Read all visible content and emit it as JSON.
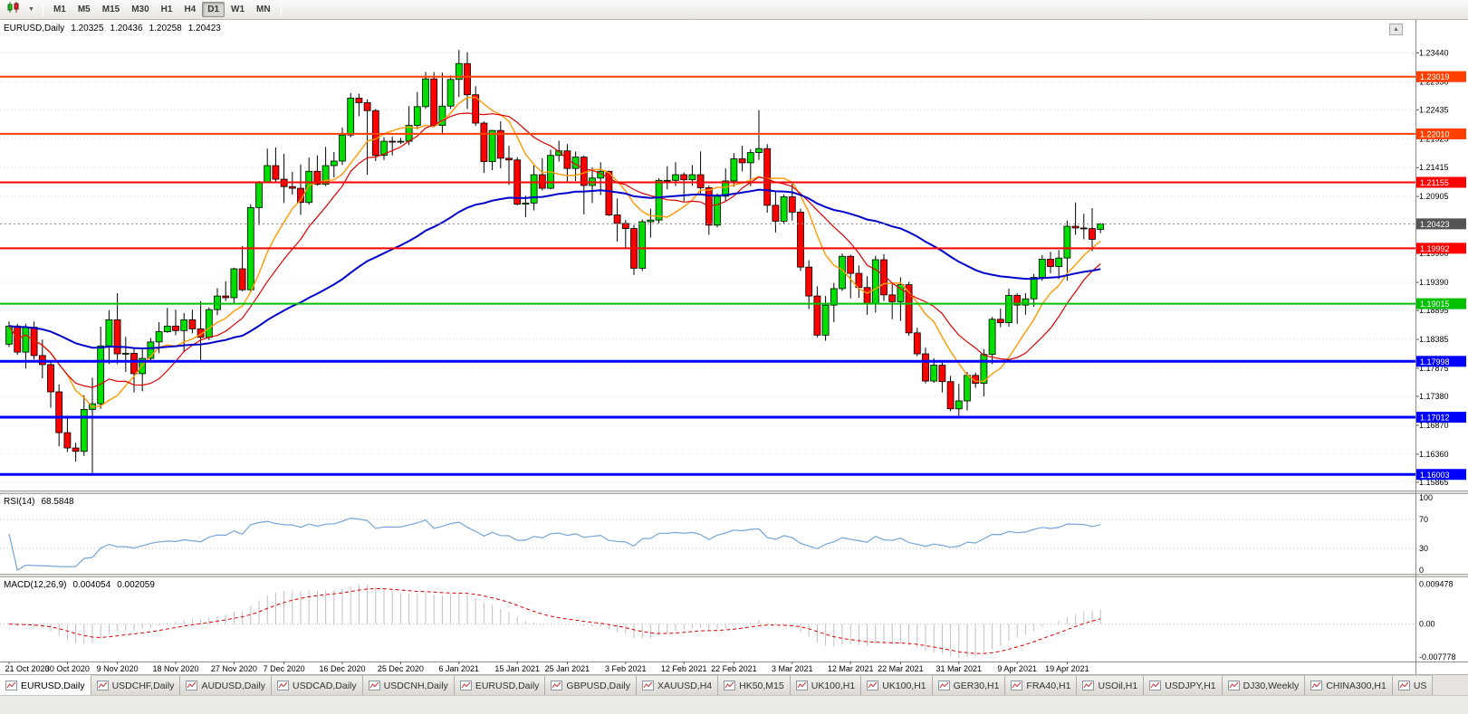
{
  "icons": {
    "dropdown_caret": "▼",
    "chart_shift": "▲"
  },
  "toolbar": {
    "timeframes": [
      {
        "label": "M1",
        "active": false
      },
      {
        "label": "M5",
        "active": false
      },
      {
        "label": "M15",
        "active": false
      },
      {
        "label": "M30",
        "active": false
      },
      {
        "label": "H1",
        "active": false
      },
      {
        "label": "H4",
        "active": false
      },
      {
        "label": "D1",
        "active": true
      },
      {
        "label": "W1",
        "active": false
      },
      {
        "label": "MN",
        "active": false
      }
    ]
  },
  "chart": {
    "symbol_title": "EURUSD,Daily",
    "ohlc": {
      "open": "1.20325",
      "high": "1.20436",
      "low": "1.20258",
      "close": "1.20423"
    }
  },
  "rsi_panel": {
    "title": "RSI(14)",
    "value": "68.5848"
  },
  "macd_panel": {
    "title": "MACD(12,26,9)",
    "macd_value": "0.004054",
    "signal_value": "0.002059"
  },
  "tabs": [
    {
      "label": "EURUSD,Daily",
      "active": true
    },
    {
      "label": "USDCHF,Daily",
      "active": false
    },
    {
      "label": "AUDUSD,Daily",
      "active": false
    },
    {
      "label": "USDCAD,Daily",
      "active": false
    },
    {
      "label": "USDCNH,Daily",
      "active": false
    },
    {
      "label": "EURUSD,Daily",
      "active": false
    },
    {
      "label": "GBPUSD,Daily",
      "active": false
    },
    {
      "label": "XAUUSD,H4",
      "active": false
    },
    {
      "label": "HK50,M15",
      "active": false
    },
    {
      "label": "UK100,H1",
      "active": false
    },
    {
      "label": "UK100,H1",
      "active": false
    },
    {
      "label": "GER30,H1",
      "active": false
    },
    {
      "label": "FRA40,H1",
      "active": false
    },
    {
      "label": "USOil,H1",
      "active": false
    },
    {
      "label": "USDJPY,H1",
      "active": false
    },
    {
      "label": "DJ30,Weekly",
      "active": false
    },
    {
      "label": "CHINA300,H1",
      "active": false
    },
    {
      "label": "US",
      "active": false
    }
  ],
  "chart_data": {
    "type": "candlestick",
    "symbol": "EURUSD",
    "timeframe": "Daily",
    "last_ohlc": {
      "open": 1.20325,
      "high": 1.20436,
      "low": 1.20258,
      "close": 1.20423
    },
    "price_axis_ticks": [
      "1.23440",
      "1.22930",
      "1.22435",
      "1.21925",
      "1.21415",
      "1.20905",
      "1.19900",
      "1.19390",
      "1.18895",
      "1.18385",
      "1.17875",
      "1.17380",
      "1.16870",
      "1.16360",
      "1.15865"
    ],
    "current_price": {
      "value": "1.20423",
      "price": 1.20423
    },
    "horizontal_levels": [
      {
        "value": "1.23019",
        "price": 1.23019,
        "color": "#FF4000",
        "width": 2
      },
      {
        "value": "1.22010",
        "price": 1.2201,
        "color": "#FF4000",
        "width": 2
      },
      {
        "value": "1.21155",
        "price": 1.21155,
        "color": "#FF0000",
        "width": 2
      },
      {
        "value": "1.19992",
        "price": 1.19992,
        "color": "#FF0000",
        "width": 2
      },
      {
        "value": "1.19015",
        "price": 1.19015,
        "color": "#00C000",
        "width": 2
      },
      {
        "value": "1.17998",
        "price": 1.17998,
        "color": "#0000FF",
        "width": 3
      },
      {
        "value": "1.17012",
        "price": 1.17012,
        "color": "#0000FF",
        "width": 3
      },
      {
        "value": "1.16003",
        "price": 1.16003,
        "color": "#0000FF",
        "width": 3
      }
    ],
    "date_labels": [
      {
        "label": "21 Oct 2020",
        "index": 0
      },
      {
        "label": "30 Oct 2020",
        "index": 7
      },
      {
        "label": "9 Nov 2020",
        "index": 13
      },
      {
        "label": "18 Nov 2020",
        "index": 20
      },
      {
        "label": "27 Nov 2020",
        "index": 27
      },
      {
        "label": "7 Dec 2020",
        "index": 33
      },
      {
        "label": "16 Dec 2020",
        "index": 40
      },
      {
        "label": "25 Dec 2020",
        "index": 47
      },
      {
        "label": "6 Jan 2021",
        "index": 54
      },
      {
        "label": "15 Jan 2021",
        "index": 61
      },
      {
        "label": "25 Jan 2021",
        "index": 67
      },
      {
        "label": "3 Feb 2021",
        "index": 74
      },
      {
        "label": "12 Feb 2021",
        "index": 81
      },
      {
        "label": "22 Feb 2021",
        "index": 87
      },
      {
        "label": "3 Mar 2021",
        "index": 94
      },
      {
        "label": "12 Mar 2021",
        "index": 101
      },
      {
        "label": "22 Mar 2021",
        "index": 107
      },
      {
        "label": "31 Mar 2021",
        "index": 114
      },
      {
        "label": "9 Apr 2021",
        "index": 121
      },
      {
        "label": "19 Apr 2021",
        "index": 127
      }
    ],
    "candles_ohlc": [
      [
        1.183,
        1.187,
        1.1825,
        1.1862
      ],
      [
        1.1862,
        1.1866,
        1.1811,
        1.1816
      ],
      [
        1.1816,
        1.1866,
        1.1787,
        1.186
      ],
      [
        1.186,
        1.187,
        1.1803,
        1.181
      ],
      [
        1.181,
        1.1838,
        1.177,
        1.1794
      ],
      [
        1.1794,
        1.18,
        1.1718,
        1.1746
      ],
      [
        1.1746,
        1.1759,
        1.165,
        1.1674
      ],
      [
        1.1674,
        1.1704,
        1.164,
        1.1647
      ],
      [
        1.1647,
        1.1656,
        1.1623,
        1.1641
      ],
      [
        1.1641,
        1.174,
        1.1633,
        1.1715
      ],
      [
        1.1715,
        1.1771,
        1.1603,
        1.1725
      ],
      [
        1.1725,
        1.1861,
        1.1716,
        1.1827
      ],
      [
        1.1827,
        1.189,
        1.1795,
        1.1873
      ],
      [
        1.1873,
        1.192,
        1.1795,
        1.1813
      ],
      [
        1.1813,
        1.1843,
        1.1781,
        1.1814
      ],
      [
        1.1814,
        1.1824,
        1.1745,
        1.1778
      ],
      [
        1.1778,
        1.1823,
        1.1747,
        1.1805
      ],
      [
        1.1805,
        1.1841,
        1.1799,
        1.1834
      ],
      [
        1.1834,
        1.1869,
        1.1814,
        1.1852
      ],
      [
        1.1852,
        1.1894,
        1.185,
        1.1862
      ],
      [
        1.1862,
        1.1891,
        1.1846,
        1.1854
      ],
      [
        1.1854,
        1.1885,
        1.1816,
        1.1873
      ],
      [
        1.1873,
        1.1891,
        1.1849,
        1.1857
      ],
      [
        1.1857,
        1.1906,
        1.18,
        1.1842
      ],
      [
        1.1842,
        1.1895,
        1.1837,
        1.1891
      ],
      [
        1.1891,
        1.1929,
        1.1881,
        1.1915
      ],
      [
        1.1915,
        1.1941,
        1.1906,
        1.1912
      ],
      [
        1.1912,
        1.1965,
        1.1901,
        1.1963
      ],
      [
        1.1963,
        1.2003,
        1.1923,
        1.1926
      ],
      [
        1.1926,
        1.2077,
        1.1922,
        1.2071
      ],
      [
        1.2071,
        1.2118,
        1.204,
        1.2115
      ],
      [
        1.2115,
        1.2175,
        1.2114,
        1.2145
      ],
      [
        1.2145,
        1.2177,
        1.2116,
        1.2121
      ],
      [
        1.2121,
        1.2166,
        1.2079,
        1.2108
      ],
      [
        1.2108,
        1.2134,
        1.2094,
        1.2105
      ],
      [
        1.2105,
        1.2147,
        1.2058,
        1.208
      ],
      [
        1.208,
        1.2159,
        1.2076,
        1.2135
      ],
      [
        1.2135,
        1.2163,
        1.211,
        1.2112
      ],
      [
        1.2112,
        1.2178,
        1.2109,
        1.2145
      ],
      [
        1.2145,
        1.2169,
        1.2124,
        1.2153
      ],
      [
        1.2153,
        1.2212,
        1.2146,
        1.2199
      ],
      [
        1.2199,
        1.2273,
        1.2195,
        1.2264
      ],
      [
        1.2264,
        1.2272,
        1.2232,
        1.2256
      ],
      [
        1.2256,
        1.2262,
        1.2129,
        1.2242
      ],
      [
        1.2242,
        1.2245,
        1.2153,
        1.2163
      ],
      [
        1.2163,
        1.2195,
        1.2155,
        1.2188
      ],
      [
        1.2188,
        1.2196,
        1.2163,
        1.2187
      ],
      [
        1.2187,
        1.2194,
        1.2183,
        1.2188
      ],
      [
        1.2188,
        1.225,
        1.2181,
        1.2216
      ],
      [
        1.2216,
        1.2275,
        1.2209,
        1.2249
      ],
      [
        1.2249,
        1.231,
        1.2245,
        1.2298
      ],
      [
        1.2298,
        1.231,
        1.2214,
        1.2216
      ],
      [
        1.2216,
        1.2309,
        1.2199,
        1.225
      ],
      [
        1.225,
        1.2304,
        1.2245,
        1.2297
      ],
      [
        1.2297,
        1.2349,
        1.2266,
        1.2325
      ],
      [
        1.2325,
        1.2345,
        1.2245,
        1.227
      ],
      [
        1.227,
        1.2285,
        1.2215,
        1.222
      ],
      [
        1.222,
        1.2223,
        1.2132,
        1.2152
      ],
      [
        1.2152,
        1.2208,
        1.2137,
        1.2207
      ],
      [
        1.2207,
        1.2223,
        1.214,
        1.2158
      ],
      [
        1.2158,
        1.218,
        1.2111,
        1.2155
      ],
      [
        1.2155,
        1.216,
        1.2075,
        1.2077
      ],
      [
        1.2077,
        1.2092,
        1.2054,
        1.2079
      ],
      [
        1.2079,
        1.2145,
        1.2066,
        1.2129
      ],
      [
        1.2129,
        1.2158,
        1.2101,
        1.2105
      ],
      [
        1.2105,
        1.2173,
        1.2103,
        1.2163
      ],
      [
        1.2163,
        1.2189,
        1.2152,
        1.2171
      ],
      [
        1.2171,
        1.2183,
        1.2116,
        1.214
      ],
      [
        1.214,
        1.217,
        1.2118,
        1.216
      ],
      [
        1.216,
        1.2163,
        1.2059,
        1.211
      ],
      [
        1.211,
        1.2142,
        1.2079,
        1.2123
      ],
      [
        1.2123,
        1.2151,
        1.2093,
        1.2135
      ],
      [
        1.2135,
        1.2136,
        1.2056,
        1.2058
      ],
      [
        1.2058,
        1.2087,
        1.2011,
        1.2043
      ],
      [
        1.2043,
        1.2049,
        1.1999,
        1.2034
      ],
      [
        1.2034,
        1.204,
        1.1952,
        1.1964
      ],
      [
        1.1964,
        1.205,
        1.1959,
        1.2046
      ],
      [
        1.2046,
        1.2069,
        1.2018,
        1.2049
      ],
      [
        1.2049,
        1.2123,
        1.2043,
        1.2119
      ],
      [
        1.2119,
        1.2144,
        1.2103,
        1.2119
      ],
      [
        1.2119,
        1.2151,
        1.2109,
        1.2129
      ],
      [
        1.2129,
        1.2133,
        1.2082,
        1.212
      ],
      [
        1.212,
        1.2146,
        1.211,
        1.2129
      ],
      [
        1.2129,
        1.217,
        1.2096,
        1.2106
      ],
      [
        1.2106,
        1.211,
        1.2023,
        1.204
      ],
      [
        1.204,
        1.2096,
        1.2036,
        1.2091
      ],
      [
        1.2091,
        1.214,
        1.2082,
        1.2118
      ],
      [
        1.2118,
        1.2167,
        1.2108,
        1.2157
      ],
      [
        1.2157,
        1.218,
        1.2135,
        1.215
      ],
      [
        1.215,
        1.2174,
        1.2109,
        1.2168
      ],
      [
        1.2168,
        1.2243,
        1.2155,
        1.2175
      ],
      [
        1.2175,
        1.2183,
        1.2062,
        1.2075
      ],
      [
        1.2075,
        1.2101,
        1.2027,
        1.2047
      ],
      [
        1.2047,
        1.2094,
        1.2043,
        1.209
      ],
      [
        1.209,
        1.2113,
        1.2048,
        1.2063
      ],
      [
        1.2063,
        1.2069,
        1.1959,
        1.1966
      ],
      [
        1.1966,
        1.1978,
        1.1892,
        1.1915
      ],
      [
        1.1915,
        1.1932,
        1.1842,
        1.1846
      ],
      [
        1.1846,
        1.1915,
        1.1836,
        1.1899
      ],
      [
        1.1899,
        1.1938,
        1.1869,
        1.1928
      ],
      [
        1.1928,
        1.199,
        1.1924,
        1.1985
      ],
      [
        1.1985,
        1.1988,
        1.1911,
        1.1955
      ],
      [
        1.1955,
        1.1969,
        1.1912,
        1.193
      ],
      [
        1.193,
        1.195,
        1.1882,
        1.1901
      ],
      [
        1.1901,
        1.1986,
        1.1886,
        1.1979
      ],
      [
        1.1979,
        1.1989,
        1.1906,
        1.1917
      ],
      [
        1.1917,
        1.1936,
        1.1874,
        1.1905
      ],
      [
        1.1905,
        1.1948,
        1.1871,
        1.1935
      ],
      [
        1.1935,
        1.194,
        1.1845,
        1.185
      ],
      [
        1.185,
        1.1859,
        1.1809,
        1.1813
      ],
      [
        1.1813,
        1.1824,
        1.1761,
        1.1765
      ],
      [
        1.1765,
        1.1805,
        1.1762,
        1.1793
      ],
      [
        1.1793,
        1.1798,
        1.1745,
        1.1764
      ],
      [
        1.1764,
        1.1774,
        1.1712,
        1.1716
      ],
      [
        1.1716,
        1.176,
        1.1704,
        1.173
      ],
      [
        1.173,
        1.1781,
        1.1713,
        1.1775
      ],
      [
        1.1775,
        1.178,
        1.1753,
        1.1761
      ],
      [
        1.1761,
        1.1821,
        1.1738,
        1.1812
      ],
      [
        1.1812,
        1.1878,
        1.1795,
        1.1874
      ],
      [
        1.1874,
        1.1893,
        1.186,
        1.1868
      ],
      [
        1.1868,
        1.1928,
        1.1861,
        1.1916
      ],
      [
        1.1916,
        1.192,
        1.1866,
        1.1899
      ],
      [
        1.1899,
        1.192,
        1.1882,
        1.191
      ],
      [
        1.191,
        1.1954,
        1.1896,
        1.1948
      ],
      [
        1.1948,
        1.1987,
        1.1942,
        1.198
      ],
      [
        1.198,
        1.1993,
        1.1955,
        1.1967
      ],
      [
        1.1967,
        1.1996,
        1.1945,
        1.1982
      ],
      [
        1.1982,
        1.2048,
        1.1942,
        1.2038
      ],
      [
        1.2038,
        1.208,
        1.2023,
        1.2035
      ],
      [
        1.2035,
        1.206,
        1.2015,
        1.2034
      ],
      [
        1.2034,
        1.207,
        1.1994,
        1.2015
      ],
      [
        1.20325,
        1.20436,
        1.20258,
        1.20423
      ]
    ],
    "moving_averages": [
      {
        "type": "sma",
        "period": 8,
        "color": "#FF9900",
        "width": 1.4
      },
      {
        "type": "sma",
        "period": 13,
        "color": "#E00000",
        "width": 1.2
      },
      {
        "type": "ema",
        "period": 55,
        "color": "#0000CC",
        "width": 2
      }
    ],
    "rsi": {
      "period": 14,
      "current": "68.5848",
      "levels": [
        70,
        30
      ],
      "axis_labels": [
        "100",
        "70",
        "30",
        "0"
      ],
      "color": "#76A5D7"
    },
    "macd": {
      "fast": 12,
      "slow": 26,
      "signal": 9,
      "current_macd": "0.004054",
      "current_signal": "0.002059",
      "axis_labels": [
        {
          "label": "0.009478",
          "value": 0.009478
        },
        {
          "label": "0.00",
          "value": 0
        },
        {
          "label": "-0.007778",
          "value": -0.007778
        }
      ],
      "histogram_color": "#BEBEBE",
      "signal_color": "#E00000"
    },
    "colors": {
      "bull": "#00DF00",
      "bear": "#FF0000",
      "outline": "#000000",
      "grid": "#DCDCDC"
    }
  }
}
